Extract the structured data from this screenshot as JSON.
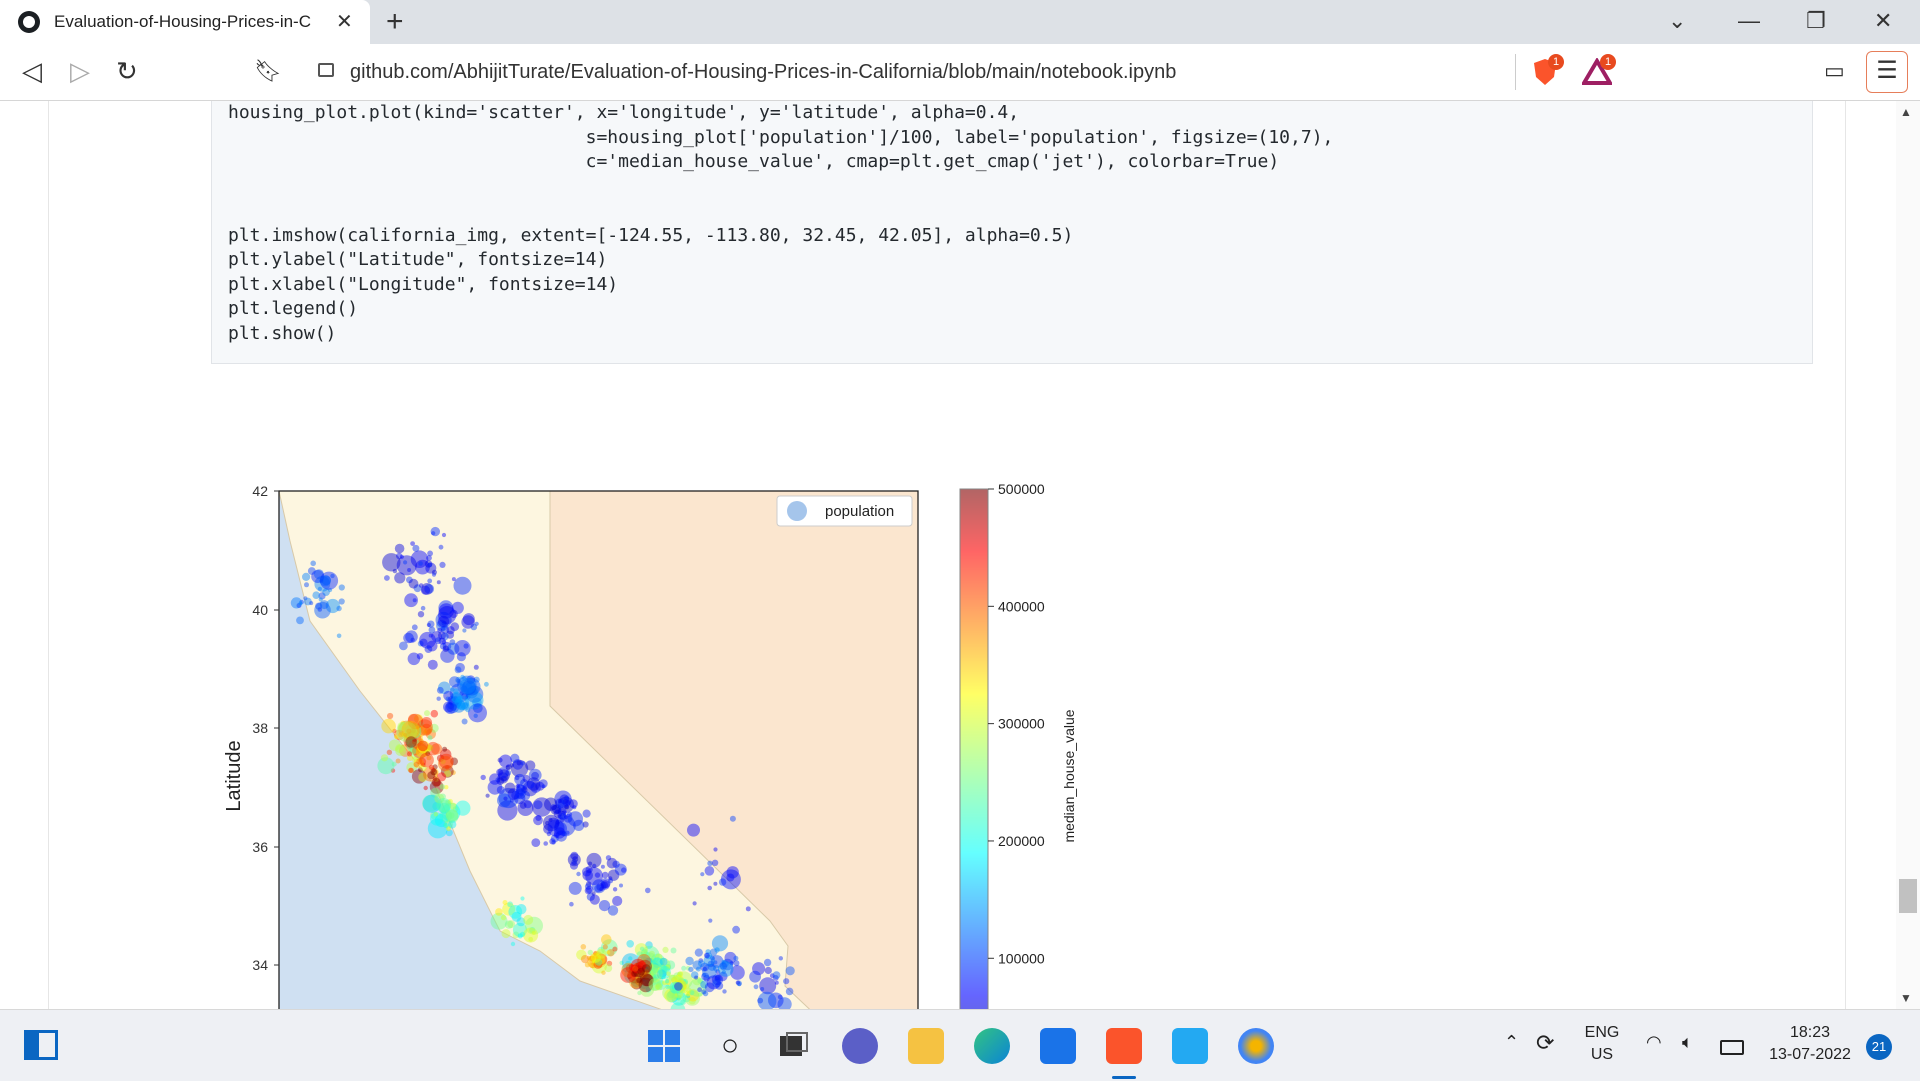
{
  "browser": {
    "tab_title": "Evaluation-of-Housing-Prices-in-C",
    "url": "github.com/AbhijitTurate/Evaluation-of-Housing-Prices-in-California/blob/main/notebook.ipynb",
    "shield_badge": "1",
    "rewards_badge": "1",
    "new_tab_label": "+"
  },
  "code_lines": [
    "housing_plot.plot(kind='scatter', x='longitude', y='latitude', alpha=0.4,",
    "                                 s=housing_plot['population']/100, label='population', figsize=(10,7),",
    "                                 c='median_house_value', cmap=plt.get_cmap('jet'), colorbar=True)",
    "",
    "",
    "plt.imshow(california_img, extent=[-124.55, -113.80, 32.45, 42.05], alpha=0.5)",
    "plt.ylabel(\"Latitude\", fontsize=14)",
    "plt.xlabel(\"Longitude\", fontsize=14)",
    "plt.legend()",
    "plt.show()"
  ],
  "chart_data": {
    "type": "scatter",
    "ylabel": "Latitude",
    "ylim": [
      32.45,
      42.05
    ],
    "xlim": [
      -124.55,
      -113.8
    ],
    "yticks": [
      "42",
      "40",
      "38",
      "36",
      "34"
    ],
    "legend": "population",
    "legend_position": "top-right",
    "colorbar_label": "median_house_value",
    "colorbar_ticks": [
      "500000",
      "400000",
      "300000",
      "200000",
      "100000"
    ],
    "colorbar_range": [
      15000,
      500000
    ],
    "colormap": "jet",
    "clusters": [
      {
        "lon": -122.3,
        "lat": 37.8,
        "spread": 0.45,
        "count": 70,
        "value": 340000
      },
      {
        "lon": -122.0,
        "lat": 37.4,
        "spread": 0.35,
        "count": 45,
        "value": 420000
      },
      {
        "lon": -121.5,
        "lat": 38.6,
        "spread": 0.35,
        "count": 60,
        "value": 120000
      },
      {
        "lon": -121.8,
        "lat": 39.6,
        "spread": 0.5,
        "count": 55,
        "value": 90000
      },
      {
        "lon": -122.2,
        "lat": 40.8,
        "spread": 0.6,
        "count": 40,
        "value": 80000
      },
      {
        "lon": -123.8,
        "lat": 40.3,
        "spread": 0.5,
        "count": 35,
        "value": 110000
      },
      {
        "lon": -120.6,
        "lat": 37.1,
        "spread": 0.45,
        "count": 60,
        "value": 80000
      },
      {
        "lon": -119.8,
        "lat": 36.5,
        "spread": 0.4,
        "count": 55,
        "value": 75000
      },
      {
        "lon": -119.2,
        "lat": 35.5,
        "spread": 0.45,
        "count": 45,
        "value": 80000
      },
      {
        "lon": -121.8,
        "lat": 36.6,
        "spread": 0.35,
        "count": 30,
        "value": 240000
      },
      {
        "lon": -120.5,
        "lat": 34.8,
        "spread": 0.35,
        "count": 25,
        "value": 260000
      },
      {
        "lon": -119.2,
        "lat": 34.2,
        "spread": 0.3,
        "count": 35,
        "value": 330000
      },
      {
        "lon": -118.3,
        "lat": 34.0,
        "spread": 0.35,
        "count": 90,
        "value": 230000
      },
      {
        "lon": -118.5,
        "lat": 33.9,
        "spread": 0.2,
        "count": 40,
        "value": 470000
      },
      {
        "lon": -117.8,
        "lat": 33.7,
        "spread": 0.3,
        "count": 55,
        "value": 260000
      },
      {
        "lon": -117.3,
        "lat": 34.0,
        "spread": 0.4,
        "count": 55,
        "value": 110000
      },
      {
        "lon": -117.1,
        "lat": 32.8,
        "spread": 0.3,
        "count": 45,
        "value": 190000
      },
      {
        "lon": -116.3,
        "lat": 33.7,
        "spread": 0.5,
        "count": 25,
        "value": 90000
      },
      {
        "lon": -115.6,
        "lat": 33.0,
        "spread": 0.3,
        "count": 12,
        "value": 70000
      },
      {
        "lon": -117.5,
        "lat": 35.5,
        "spread": 0.9,
        "count": 18,
        "value": 85000
      }
    ]
  },
  "taskbar": {
    "language": "ENG",
    "region": "US",
    "time": "18:23",
    "date": "13-07-2022",
    "notification_count": "21"
  },
  "colors": {
    "accent": "#0a66c2",
    "brave": "#fb542b",
    "code_bg": "#f6f8fa"
  }
}
